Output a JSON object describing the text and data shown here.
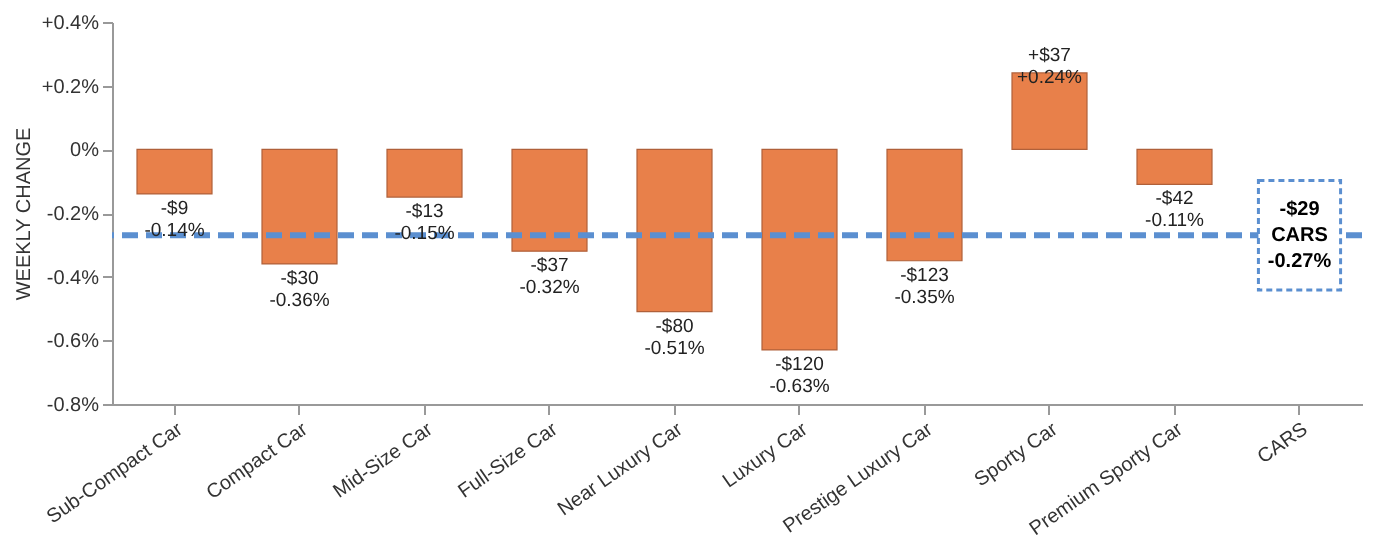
{
  "chart_data": {
    "type": "bar",
    "ylabel": "WEEKLY CHANGE",
    "categories": [
      "Sub-Compact Car",
      "Compact Car",
      "Mid-Size Car",
      "Full-Size Car",
      "Near Luxury Car",
      "Luxury Car",
      "Prestige Luxury Car",
      "Sporty Car",
      "Premium Sporty Car",
      "CARS"
    ],
    "values": [
      -0.14,
      -0.36,
      -0.15,
      -0.32,
      -0.51,
      -0.63,
      -0.35,
      0.24,
      -0.11,
      null
    ],
    "color": "#e8804a",
    "value_labels": [
      "-$9\n-0.14%",
      "-$30\n-0.36%",
      "-$13\n-0.15%",
      "-$37\n-0.32%",
      "-$80\n-0.51%",
      "-$120\n-0.63%",
      "-$123\n-0.35%",
      "+$37\n+0.24%",
      "-$42\n-0.11%",
      null
    ],
    "ylim": [
      -0.8,
      0.4
    ],
    "yticks": [
      {
        "value": 0.4,
        "label": "+0.4%"
      },
      {
        "value": 0.2,
        "label": "+0.2%"
      },
      {
        "value": 0,
        "label": "0%"
      },
      {
        "value": -0.2,
        "label": "-0.2%"
      },
      {
        "value": -0.4,
        "label": "-0.4%"
      },
      {
        "value": -0.6,
        "label": "-0.6%"
      },
      {
        "value": -0.8,
        "label": "-0.8%"
      }
    ],
    "ref_lines": [
      {
        "axis": "y",
        "value": -0.27,
        "label": "-$29\nCARS\n-0.27%",
        "color": "#5b8fd0",
        "line_style": "dashed"
      }
    ],
    "grid": false
  }
}
